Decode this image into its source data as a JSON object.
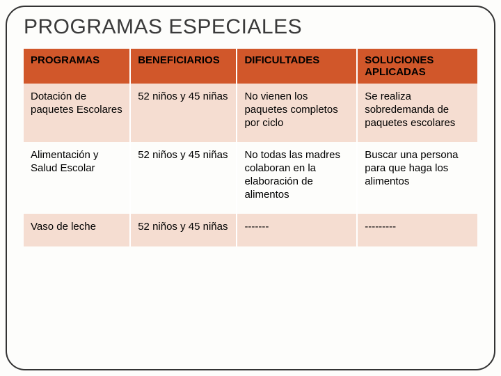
{
  "title": "PROGRAMAS ESPECIALES",
  "table": {
    "header_bg": "#d1572a",
    "row_alt_bg": "#f5ddd1",
    "row_bg": "#fdfdfb",
    "columns": [
      "PROGRAMAS",
      "BENEFICIARIOS",
      "DIFICULTADES",
      "SOLUCIONES APLICADAS"
    ],
    "rows": [
      {
        "c0": "Dotación de paquetes Escolares",
        "c1": "52 niños y 45 niñas",
        "c2": "No vienen los paquetes completos por ciclo",
        "c3": "Se realiza sobredemanda de paquetes escolares"
      },
      {
        "c0": "Alimentación y Salud Escolar",
        "c1": "52 niños y 45 niñas",
        "c2": "No todas las madres colaboran en la elaboración de alimentos",
        "c3": "Buscar una persona para que haga los alimentos"
      },
      {
        "c0": "Vaso de leche",
        "c1": "52 niños y 45 niñas",
        "c2": "-------",
        "c3": "---------"
      }
    ]
  }
}
